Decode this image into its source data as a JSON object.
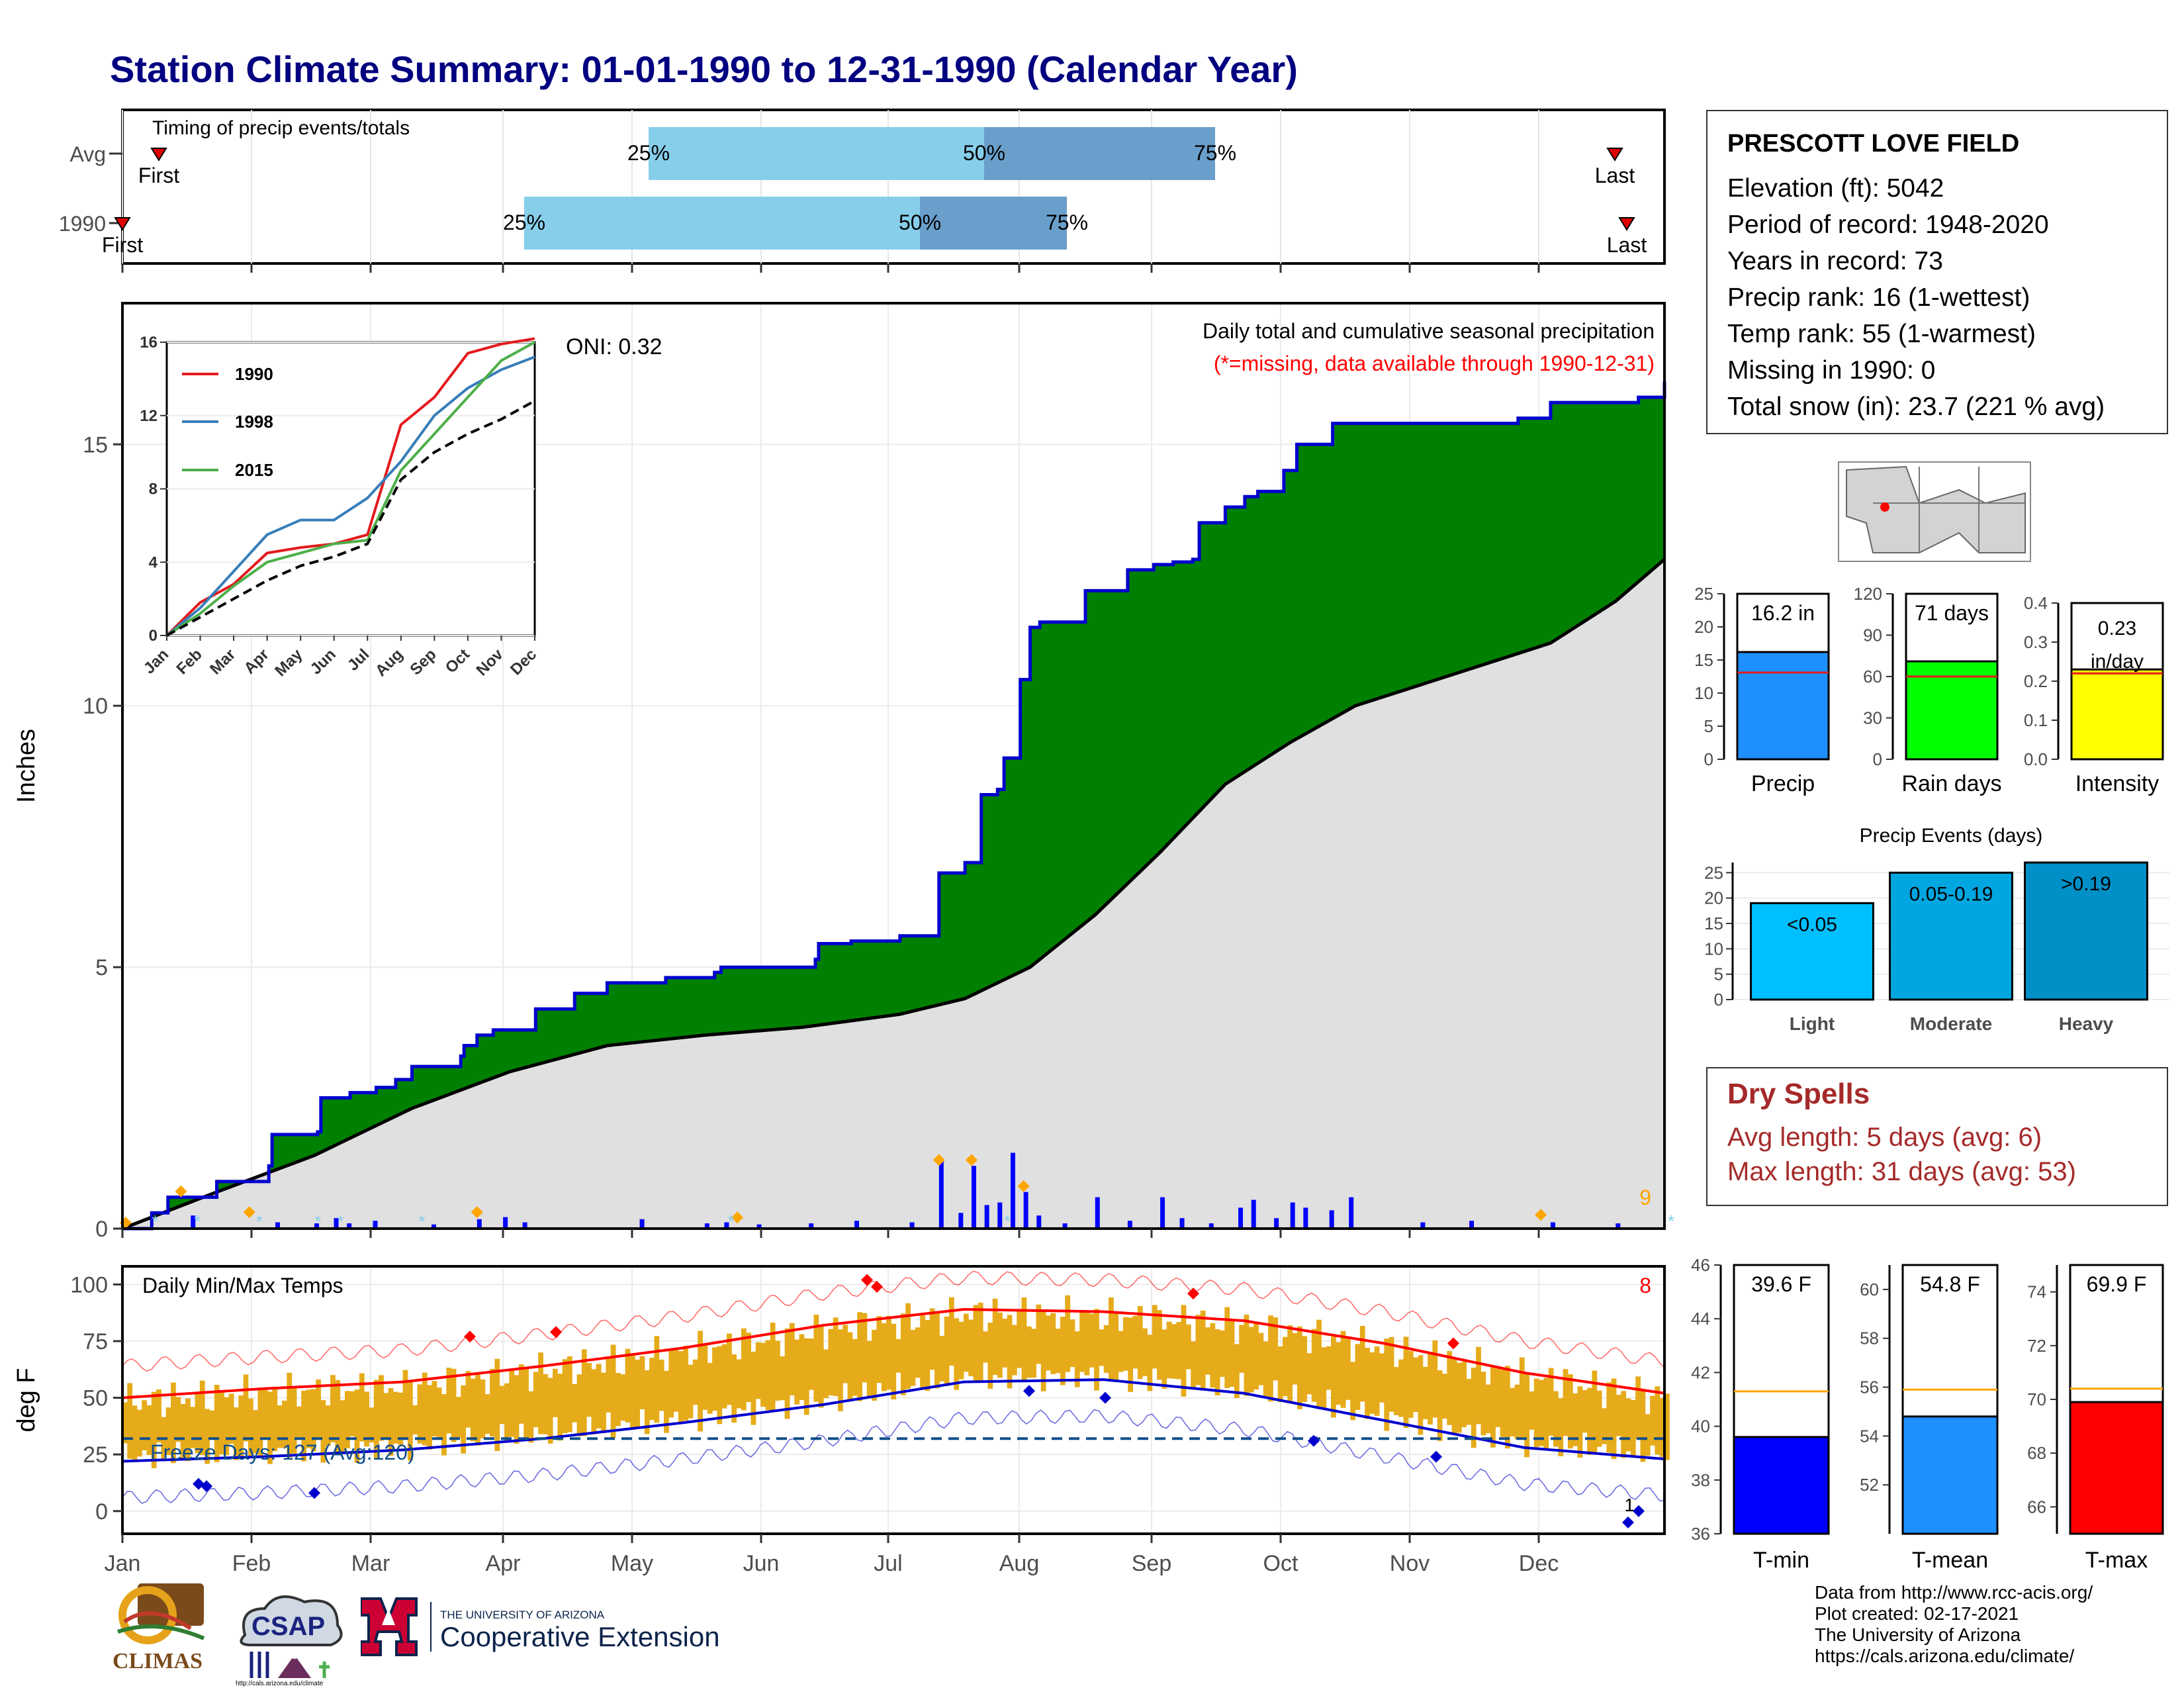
{
  "title": "Station Climate Summary: 01-01-1990 to 12-31-1990 (Calendar Year)",
  "colors": {
    "title": "#000080",
    "precip_fill": "#008000",
    "avg_fill": "#e0e0e0",
    "bar_blue": "#0000ff",
    "tmin": "#0000cd",
    "tmax": "#ff0000",
    "bars_temp": "#e6ab1a",
    "dry": "#a52a2a"
  },
  "timing": {
    "title": "Timing of precip events/totals",
    "rows": [
      {
        "label": "Avg",
        "p25": "25%",
        "p50": "50%",
        "p75": "75%",
        "first": "First",
        "last": "Last"
      },
      {
        "label": "1990",
        "p25": "25%",
        "p50": "50%",
        "p75": "75%",
        "first": "First",
        "last": "Last"
      }
    ]
  },
  "precip_panel": {
    "subtitle": "Daily total and cumulative seasonal precipitation",
    "missing_note": "(*=missing, data available through 1990-12-31)",
    "oni": "ONI: 0.32",
    "ylabel": "Inches",
    "count_label": "9"
  },
  "temp_panel": {
    "title": "Daily Min/Max Temps",
    "ylabel": "deg F",
    "freeze": "Freeze Days: 127 (Avg:120)",
    "count_label": "8",
    "mark_label": "1"
  },
  "months": [
    "Jan",
    "Feb",
    "Mar",
    "Apr",
    "May",
    "Jun",
    "Jul",
    "Aug",
    "Sep",
    "Oct",
    "Nov",
    "Dec"
  ],
  "station": {
    "name": "PRESCOTT LOVE FIELD",
    "lines": [
      "Elevation (ft): 5042",
      "Period of record: 1948-2020",
      "Years in record: 73",
      "Precip rank: 16 (1-wettest)",
      "Temp rank: 55 (1-warmest)",
      "Missing in 1990: 0",
      "Total snow (in): 23.7 (221 % avg)"
    ]
  },
  "mini_bars": [
    {
      "label": "Precip",
      "value_label": "16.2 in"
    },
    {
      "label": "Rain days",
      "value_label": "71 days"
    },
    {
      "label": "Intensity",
      "value_label": "0.23 in/day"
    }
  ],
  "events": {
    "title": "Precip Events (days)",
    "labels": [
      "<0.05",
      "0.05-0.19",
      ">0.19"
    ],
    "cats": [
      "Light",
      "Moderate",
      "Heavy"
    ]
  },
  "dry_spells": {
    "title": "Dry Spells",
    "avg": "Avg length: 5 days (avg: 6)",
    "max": "Max length: 31 days (avg: 53)"
  },
  "temp_bars": [
    {
      "label": "T-min",
      "value_label": "39.6 F"
    },
    {
      "label": "T-mean",
      "value_label": "54.8 F"
    },
    {
      "label": "T-max",
      "value_label": "69.9 F"
    }
  ],
  "credits": [
    "Data from http://www.rcc-acis.org/",
    "Plot created: 02-17-2021",
    "The University of Arizona",
    "https://cals.arizona.edu/climate/"
  ],
  "logos": {
    "climas": "CLIMAS",
    "csap": "CSAP",
    "csap_url": "http://cals.arizona.edu/climate",
    "ua_line1": "THE UNIVERSITY OF ARIZONA",
    "ua_line2": "Cooperative Extension"
  },
  "chart_data": [
    {
      "type": "line",
      "title": "Daily total and cumulative seasonal precipitation",
      "ylabel": "Inches",
      "ylim": [
        0,
        17.7
      ],
      "x": [
        "Jan",
        "Feb",
        "Mar",
        "Apr",
        "May",
        "Jun",
        "Jul",
        "Aug",
        "Sep",
        "Oct",
        "Nov",
        "Dec"
      ],
      "series": [
        {
          "name": "1990",
          "values": [
            [
              1,
              0
            ],
            [
              10,
              0.3
            ],
            [
              15,
              0.6
            ],
            [
              30,
              0.9
            ],
            [
              46,
              1.2
            ],
            [
              47,
              1.8
            ],
            [
              61,
              1.85
            ],
            [
              62,
              2.5
            ],
            [
              70,
              2.5
            ],
            [
              71,
              2.6
            ],
            [
              79,
              2.7
            ],
            [
              85,
              2.85
            ],
            [
              90,
              3.1
            ],
            [
              105,
              3.3
            ],
            [
              106,
              3.5
            ],
            [
              110,
              3.7
            ],
            [
              115,
              3.8
            ],
            [
              128,
              4.2
            ],
            [
              140,
              4.5
            ],
            [
              150,
              4.7
            ],
            [
              168,
              4.8
            ],
            [
              183,
              4.9
            ],
            [
              185,
              5.0
            ],
            [
              200,
              5.0
            ],
            [
              214,
              5.15
            ],
            [
              215,
              5.45
            ],
            [
              225,
              5.5
            ],
            [
              239,
              5.5
            ],
            [
              240,
              5.6
            ],
            [
              250,
              5.6
            ],
            [
              252,
              6.8
            ],
            [
              260,
              7.0
            ],
            [
              265,
              8.3
            ],
            [
              270,
              8.4
            ],
            [
              272,
              9.0
            ],
            [
              277,
              10.5
            ],
            [
              280,
              11.5
            ],
            [
              283,
              11.6
            ],
            [
              296,
              11.6
            ],
            [
              297,
              12.2
            ],
            [
              308,
              12.2
            ],
            [
              310,
              12.6
            ],
            [
              318,
              12.7
            ],
            [
              324,
              12.75
            ],
            [
              330,
              12.8
            ],
            [
              332,
              13.5
            ],
            [
              340,
              13.8
            ],
            [
              346,
              14.0
            ],
            [
              350,
              14.1
            ],
            [
              358,
              14.5
            ],
            [
              362,
              15.0
            ],
            [
              373,
              15.4
            ],
            [
              400,
              15.4
            ],
            [
              430,
              15.5
            ],
            [
              440,
              15.8
            ],
            [
              467,
              15.9
            ],
            [
              475,
              16.2
            ]
          ]
        },
        {
          "name": "Avg",
          "values": [
            [
              1,
              0
            ],
            [
              30,
              0.7
            ],
            [
              60,
              1.4
            ],
            [
              90,
              2.3
            ],
            [
              120,
              3.0
            ],
            [
              150,
              3.5
            ],
            [
              180,
              3.7
            ],
            [
              210,
              3.85
            ],
            [
              240,
              4.1
            ],
            [
              260,
              4.4
            ],
            [
              280,
              5.0
            ],
            [
              300,
              6.0
            ],
            [
              320,
              7.2
            ],
            [
              340,
              8.5
            ],
            [
              360,
              9.3
            ],
            [
              380,
              10.0
            ],
            [
              400,
              10.4
            ],
            [
              420,
              10.8
            ],
            [
              440,
              11.2
            ],
            [
              460,
              12.0
            ],
            [
              475,
              12.8
            ]
          ]
        }
      ]
    },
    {
      "type": "line",
      "title": "Cumulative precipitation comparison (inset)",
      "ylim": [
        0,
        16
      ],
      "x": [
        "Jan",
        "Feb",
        "Mar",
        "Apr",
        "May",
        "Jun",
        "Jul",
        "Aug",
        "Sep",
        "Oct",
        "Nov",
        "Dec"
      ],
      "series": [
        {
          "name": "1990",
          "values": [
            0,
            1.8,
            2.8,
            4.5,
            4.8,
            5.0,
            5.5,
            11.5,
            13.0,
            15.4,
            15.9,
            16.2
          ]
        },
        {
          "name": "1998",
          "values": [
            0,
            1.5,
            3.5,
            5.5,
            6.3,
            6.3,
            7.5,
            9.5,
            12.0,
            13.5,
            14.5,
            15.2
          ]
        },
        {
          "name": "2015",
          "values": [
            0,
            1.2,
            2.7,
            4.0,
            4.5,
            5.0,
            5.2,
            9.0,
            11.0,
            13.0,
            15.0,
            16.0
          ]
        },
        {
          "name": "Avg",
          "values": [
            0,
            1.0,
            2.0,
            3.0,
            3.8,
            4.3,
            5.0,
            8.5,
            10.0,
            11.0,
            11.8,
            12.8
          ]
        }
      ]
    },
    {
      "type": "bar",
      "title": "Daily Min/Max Temps",
      "ylabel": "deg F",
      "ylim": [
        -10,
        108
      ],
      "x": [
        "Jan",
        "Feb",
        "Mar",
        "Apr",
        "May",
        "Jun",
        "Jul",
        "Aug",
        "Sep",
        "Oct",
        "Nov",
        "Dec"
      ],
      "series": [
        {
          "name": "Avg max",
          "values": [
            50,
            54,
            57,
            64,
            72,
            82,
            89,
            88,
            84,
            74,
            61,
            52
          ]
        },
        {
          "name": "Avg min",
          "values": [
            22,
            24,
            27,
            32,
            39,
            47,
            57,
            58,
            52,
            40,
            28,
            23
          ]
        }
      ]
    },
    {
      "type": "bar",
      "categories": [
        "Precip"
      ],
      "values": [
        16.2
      ],
      "ylim": [
        0,
        25
      ],
      "reference": 13.1
    },
    {
      "type": "bar",
      "categories": [
        "Rain days"
      ],
      "values": [
        71
      ],
      "ylim": [
        0,
        120
      ],
      "reference": 60
    },
    {
      "type": "bar",
      "categories": [
        "Intensity"
      ],
      "values": [
        0.23
      ],
      "ylim": [
        0,
        0.4
      ],
      "reference": 0.22
    },
    {
      "type": "bar",
      "title": "Precip Events (days)",
      "categories": [
        "Light",
        "Moderate",
        "Heavy"
      ],
      "values": [
        19,
        25,
        27
      ],
      "ylim": [
        0,
        27
      ]
    },
    {
      "type": "bar",
      "categories": [
        "T-min"
      ],
      "values": [
        39.6
      ],
      "ylim": [
        36,
        46
      ],
      "reference": 41.3
    },
    {
      "type": "bar",
      "categories": [
        "T-mean"
      ],
      "values": [
        54.8
      ],
      "ylim": [
        50,
        61
      ],
      "reference": 55.9
    },
    {
      "type": "bar",
      "categories": [
        "T-max"
      ],
      "values": [
        69.9
      ],
      "ylim": [
        65,
        75
      ],
      "reference": 70.4
    }
  ]
}
